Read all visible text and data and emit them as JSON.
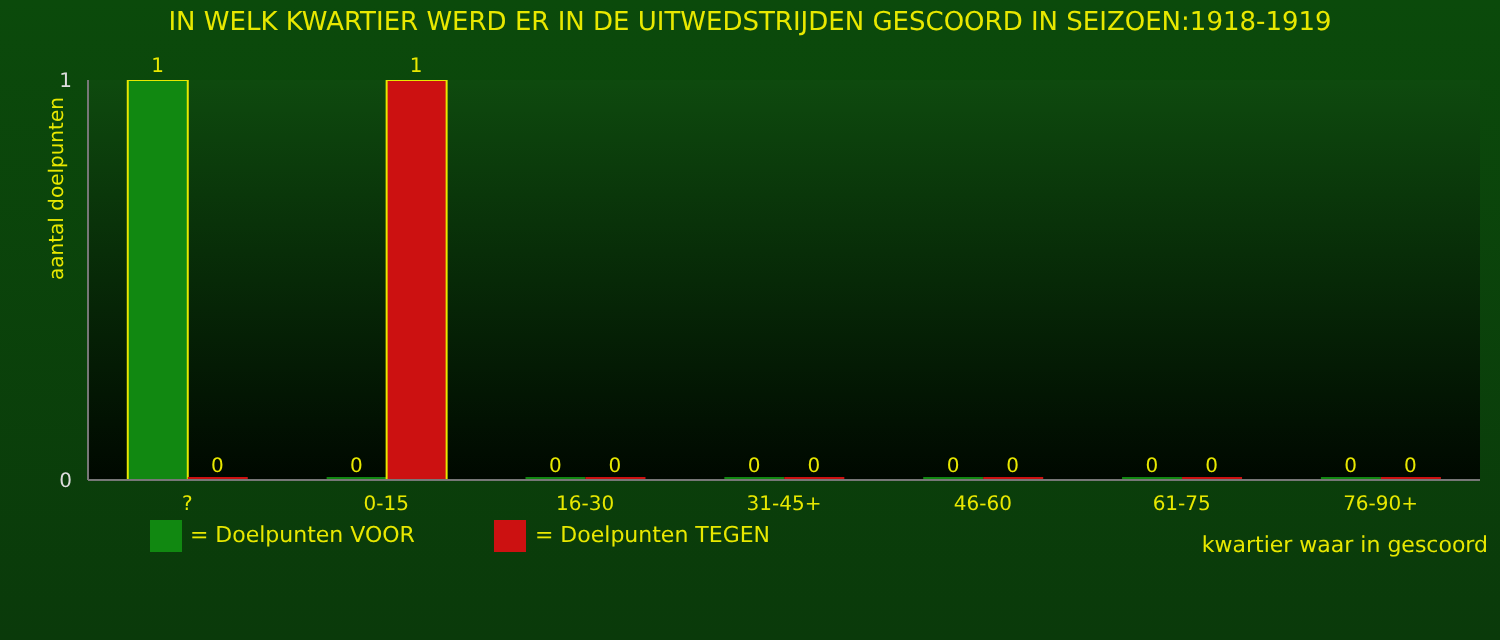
{
  "chart_data": {
    "type": "bar",
    "title": "IN WELK KWARTIER WERD ER IN DE UITWEDSTRIJDEN GESCOORD IN SEIZOEN:1918-1919",
    "xlabel": "kwartier waar in gescoord",
    "ylabel": "aantal doelpunten",
    "categories": [
      "?",
      "0-15",
      "16-30",
      "31-45+",
      "46-60",
      "61-75",
      "76-90+"
    ],
    "series": [
      {
        "name": "= Doelpunten VOOR",
        "color": "#118811",
        "values": [
          1,
          0,
          0,
          0,
          0,
          0,
          0
        ]
      },
      {
        "name": "= Doelpunten TEGEN",
        "color": "#cc1111",
        "values": [
          0,
          1,
          0,
          0,
          0,
          0,
          0
        ]
      }
    ],
    "ylim": [
      0,
      1
    ],
    "yticks": [
      0,
      1
    ],
    "grid": false,
    "legend": "bottom",
    "data_labels": true
  }
}
